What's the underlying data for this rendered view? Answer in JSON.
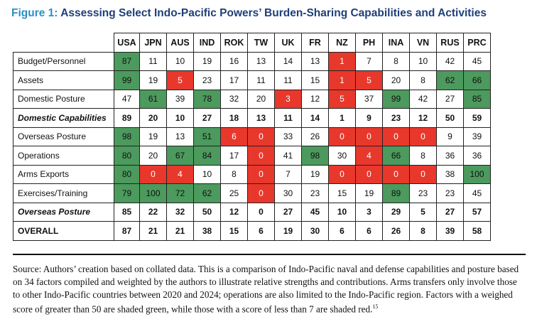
{
  "figure": {
    "label": "Figure 1:",
    "title": "Assessing Select Indo-Pacific Powers’ Burden-Sharing Capabilities and Activities"
  },
  "table": {
    "columns": [
      "USA",
      "JPN",
      "AUS",
      "IND",
      "ROK",
      "TW",
      "UK",
      "FR",
      "NZ",
      "PH",
      "INA",
      "VN",
      "RUS",
      "PRC"
    ],
    "rows": [
      {
        "label": "Budget/Personnel",
        "style": "normal",
        "values": [
          "87",
          "11",
          "10",
          "19",
          "16",
          "13",
          "14",
          "13",
          "1",
          "7",
          "8",
          "10",
          "42",
          "45"
        ]
      },
      {
        "label": "Assets",
        "style": "normal",
        "values": [
          "99",
          "19",
          "5",
          "23",
          "17",
          "11",
          "11",
          "15",
          "1",
          "5",
          "20",
          "8",
          "62",
          "66"
        ]
      },
      {
        "label": "Domestic Posture",
        "style": "normal",
        "values": [
          "47",
          "61",
          "39",
          "78",
          "32",
          "20",
          "3",
          "12",
          "5",
          "37",
          "99",
          "42",
          "27",
          "85"
        ]
      },
      {
        "label": "Domestic Capabilities",
        "style": "subtotal",
        "values": [
          "89",
          "20",
          "10",
          "27",
          "18",
          "13",
          "11",
          "14",
          "1",
          "9",
          "23",
          "12",
          "50",
          "59"
        ]
      },
      {
        "label": "Overseas Posture",
        "style": "normal",
        "values": [
          "98",
          "19",
          "13",
          "51",
          "6",
          "0",
          "33",
          "26",
          "0",
          "0",
          "0",
          "0",
          "9",
          "39"
        ]
      },
      {
        "label": "Operations",
        "style": "normal",
        "values": [
          "80",
          "20",
          "67",
          "84",
          "17",
          "0",
          "41",
          "98",
          "30",
          "4",
          "66",
          "8",
          "36",
          "36"
        ]
      },
      {
        "label": "Arms Exports",
        "style": "normal",
        "values": [
          "80",
          "0",
          "4",
          "10",
          "8",
          "0",
          "7",
          "19",
          "0",
          "0",
          "0",
          "0",
          "38",
          "100"
        ]
      },
      {
        "label": "Exercises/Training",
        "style": "normal",
        "values": [
          "79",
          "100",
          "72",
          "62",
          "25",
          "0",
          "30",
          "23",
          "15",
          "19",
          "89",
          "23",
          "23",
          "45"
        ]
      },
      {
        "label": "Overseas Posture",
        "style": "subtotal",
        "values": [
          "85",
          "22",
          "32",
          "50",
          "12",
          "0",
          "27",
          "45",
          "10",
          "3",
          "29",
          "5",
          "27",
          "57"
        ]
      },
      {
        "label": "OVERALL",
        "style": "overall",
        "values": [
          "87",
          "21",
          "21",
          "38",
          "15",
          "6",
          "19",
          "30",
          "6",
          "6",
          "26",
          "8",
          "39",
          "58"
        ]
      }
    ],
    "colors": {
      "green": "#4c9a5d",
      "red": "#e8382c"
    },
    "green_threshold": 50,
    "red_threshold": 7
  },
  "source": {
    "text": "Source: Authors’ creation based on collated data. This is a comparison of Indo-Pacific naval and defense capabilities and posture based on 34 factors compiled and weighted by the authors to illustrate relative strengths and contributions. Arms transfers only involve those to other Indo-Pacific countries between 2020 and 2024; operations are also limited to the Indo-Pacific region. Factors with a weighed score of greater than 50 are shaded green, while those with a score of less than 7 are shaded red.",
    "footnote": "15"
  }
}
